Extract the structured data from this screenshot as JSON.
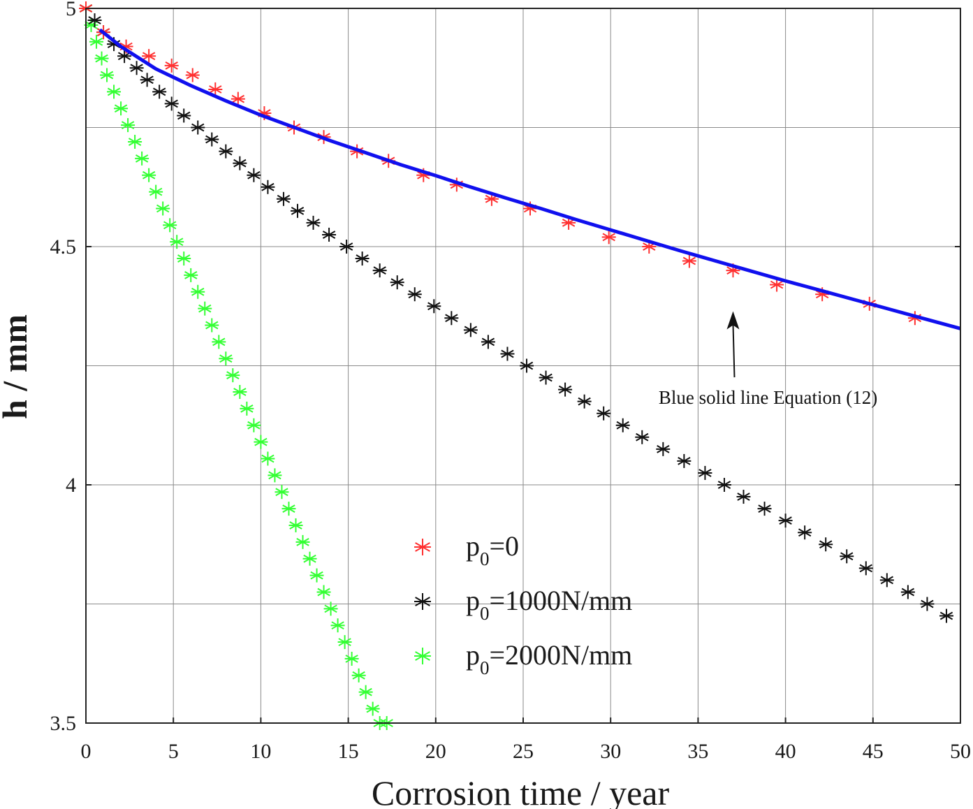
{
  "chart_data": {
    "type": "line",
    "xlabel": "Corrosion time / year",
    "ylabel": "h / mm",
    "xlim": [
      0,
      50
    ],
    "ylim": [
      3.5,
      5
    ],
    "xticks": [
      0,
      5,
      10,
      15,
      20,
      25,
      30,
      35,
      40,
      45,
      50
    ],
    "yticks": [
      3.5,
      4,
      4.5,
      5
    ],
    "x_tick_labels": [
      "0",
      "5",
      "10",
      "15",
      "20",
      "25",
      "30",
      "35",
      "40",
      "45",
      "50"
    ],
    "y_tick_labels": [
      "3.5",
      "4",
      "4.5",
      "5"
    ],
    "grid": true,
    "legend_position": "lower-center",
    "series": [
      {
        "name": "p0=0",
        "legend_main": "p",
        "legend_sub": "0",
        "legend_rest": "=0",
        "marker": "asterisk",
        "color": "#ff3030",
        "x": [
          0,
          1,
          2.3,
          3.6,
          4.9,
          6.1,
          7.4,
          8.7,
          10.2,
          11.9,
          13.6,
          15.5,
          17.3,
          19.3,
          21.2,
          23.2,
          25.4,
          27.6,
          29.9,
          32.2,
          34.5,
          37,
          39.5,
          42.1,
          44.8,
          47.4
        ],
        "y": [
          5,
          4.95,
          4.92,
          4.9,
          4.88,
          4.86,
          4.83,
          4.81,
          4.78,
          4.75,
          4.73,
          4.7,
          4.68,
          4.65,
          4.63,
          4.6,
          4.58,
          4.55,
          4.52,
          4.5,
          4.47,
          4.45,
          4.42,
          4.4,
          4.38,
          4.35
        ]
      },
      {
        "name": "p0=1000N/mm",
        "legend_main": "p",
        "legend_sub": "0",
        "legend_rest": "=1000N/mm",
        "marker": "asterisk",
        "color": "#111111",
        "x": [
          0,
          0.5,
          1,
          1.6,
          2.2,
          2.9,
          3.5,
          4.2,
          4.9,
          5.6,
          6.4,
          7.2,
          8,
          8.8,
          9.6,
          10.4,
          11.3,
          12.1,
          13,
          13.9,
          14.9,
          15.8,
          16.8,
          17.8,
          18.8,
          19.9,
          20.9,
          22,
          23,
          24.1,
          25.2,
          26.3,
          27.4,
          28.5,
          29.6,
          30.7,
          31.8,
          33,
          34.2,
          35.4,
          36.5,
          37.6,
          38.8,
          40,
          41.1,
          42.3,
          43.5,
          44.6,
          45.8,
          47,
          48.1,
          49.2
        ],
        "y": [
          5,
          4.975,
          4.95,
          4.925,
          4.9,
          4.875,
          4.85,
          4.825,
          4.8,
          4.775,
          4.75,
          4.725,
          4.7,
          4.675,
          4.65,
          4.625,
          4.6,
          4.575,
          4.55,
          4.525,
          4.5,
          4.475,
          4.45,
          4.425,
          4.4,
          4.375,
          4.35,
          4.325,
          4.3,
          4.275,
          4.25,
          4.225,
          4.2,
          4.175,
          4.15,
          4.125,
          4.1,
          4.075,
          4.05,
          4.025,
          4,
          3.975,
          3.95,
          3.925,
          3.9,
          3.875,
          3.85,
          3.825,
          3.8,
          3.775,
          3.75,
          3.725
        ]
      },
      {
        "name": "p0=2000N/mm",
        "legend_main": "p",
        "legend_sub": "0",
        "legend_rest": "=2000N/mm",
        "marker": "asterisk",
        "color": "#33ff33",
        "x": [
          0,
          0.3,
          0.6,
          0.9,
          1.2,
          1.6,
          2,
          2.4,
          2.8,
          3.2,
          3.6,
          4,
          4.4,
          4.8,
          5.2,
          5.6,
          6,
          6.4,
          6.8,
          7.2,
          7.6,
          8,
          8.4,
          8.8,
          9.2,
          9.6,
          10,
          10.4,
          10.8,
          11.2,
          11.6,
          12,
          12.4,
          12.8,
          13.2,
          13.6,
          14,
          14.4,
          14.8,
          15.2,
          15.6,
          16,
          16.4,
          16.8,
          17.2
        ],
        "y": [
          5,
          4.965,
          4.93,
          4.895,
          4.86,
          4.825,
          4.79,
          4.755,
          4.72,
          4.685,
          4.65,
          4.615,
          4.58,
          4.545,
          4.51,
          4.475,
          4.44,
          4.405,
          4.37,
          4.335,
          4.3,
          4.265,
          4.23,
          4.195,
          4.16,
          4.125,
          4.09,
          4.055,
          4.02,
          3.985,
          3.95,
          3.915,
          3.88,
          3.845,
          3.81,
          3.775,
          3.74,
          3.705,
          3.67,
          3.635,
          3.6,
          3.565,
          3.53,
          3.5,
          3.5
        ]
      },
      {
        "name": "Equation (12)",
        "style": "solid",
        "color": "#1010ee",
        "x": [
          0.8,
          2,
          4,
          6,
          8,
          10,
          12,
          14,
          16,
          18,
          20,
          22,
          24,
          26,
          28,
          30,
          32,
          34,
          36,
          38,
          40,
          42,
          44,
          46,
          48,
          50
        ],
        "y": [
          4.955,
          4.92,
          4.873,
          4.838,
          4.806,
          4.776,
          4.749,
          4.722,
          4.697,
          4.672,
          4.649,
          4.625,
          4.602,
          4.58,
          4.557,
          4.535,
          4.513,
          4.491,
          4.47,
          4.449,
          4.428,
          4.408,
          4.388,
          4.368,
          4.348,
          4.328
        ]
      }
    ],
    "annotations": [
      {
        "text": "Blue solid line Equation (12)",
        "arrow_to": [
          37,
          4.42
        ],
        "text_at": [
          39,
          4.17
        ]
      }
    ]
  }
}
